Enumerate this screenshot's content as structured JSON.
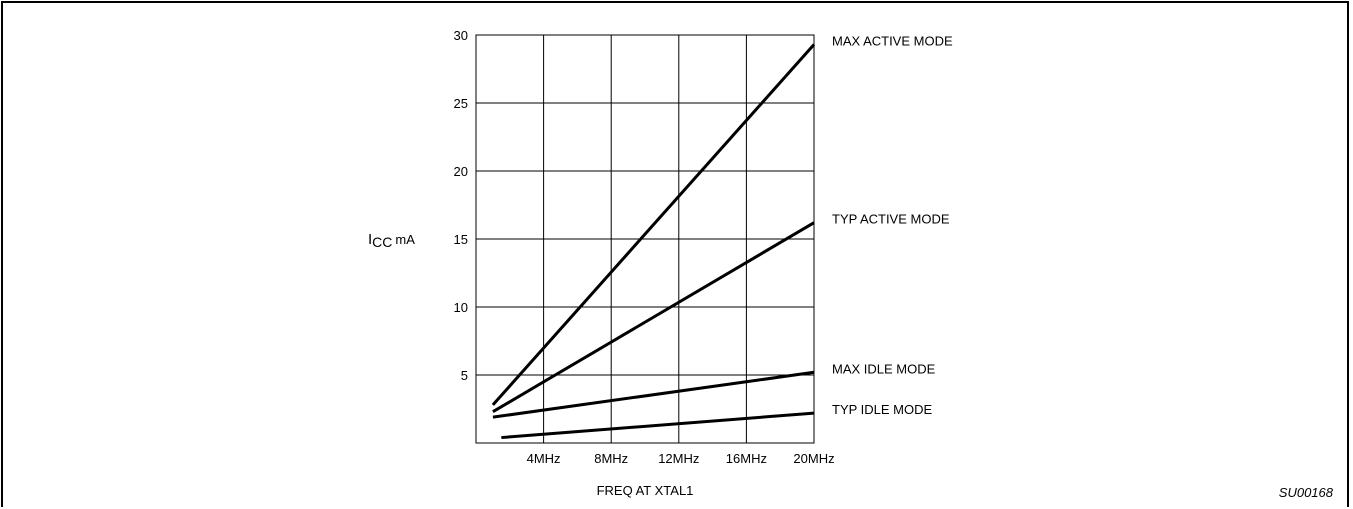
{
  "chart_data": {
    "type": "line",
    "title": "",
    "xlabel": "FREQ AT XTAL1",
    "ylabel": {
      "main": "I",
      "subscript": "CC",
      "unit": "mA"
    },
    "x_ticks": [
      {
        "value": 4,
        "label": "4MHz"
      },
      {
        "value": 8,
        "label": "8MHz"
      },
      {
        "value": 12,
        "label": "12MHz"
      },
      {
        "value": 16,
        "label": "16MHz"
      },
      {
        "value": 20,
        "label": "20MHz"
      }
    ],
    "y_ticks": [
      5,
      10,
      15,
      20,
      25,
      30
    ],
    "xlim": [
      0,
      20
    ],
    "ylim": [
      0,
      30
    ],
    "grid": true,
    "series": [
      {
        "name": "MAX ACTIVE MODE",
        "x": [
          1,
          20
        ],
        "y": [
          2.8,
          29.3
        ]
      },
      {
        "name": "TYP ACTIVE MODE",
        "x": [
          1,
          20
        ],
        "y": [
          2.3,
          16.2
        ]
      },
      {
        "name": "MAX IDLE MODE",
        "x": [
          1,
          20
        ],
        "y": [
          1.9,
          5.2
        ]
      },
      {
        "name": "TYP IDLE MODE",
        "x": [
          1.5,
          20
        ],
        "y": [
          0.4,
          2.2
        ]
      }
    ],
    "line_color": "#000000"
  },
  "figure_id": "SU00168"
}
